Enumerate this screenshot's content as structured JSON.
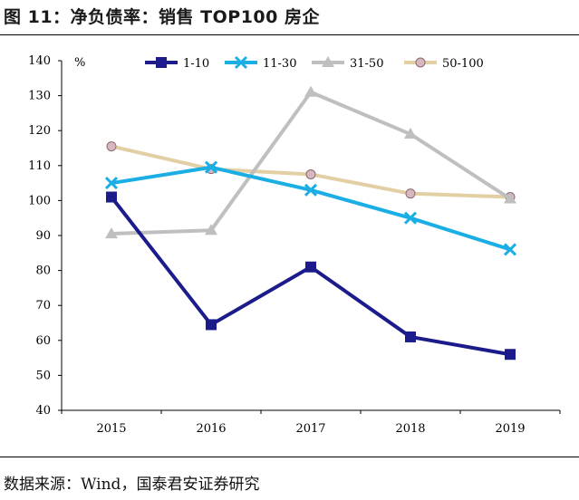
{
  "header": {
    "title": "图 11：净负债率：销售 TOP100 房企"
  },
  "footer": {
    "source": "数据来源：Wind，国泰君安证券研究"
  },
  "chart_data": {
    "type": "line",
    "ylabel": "%",
    "ylim": [
      40,
      140
    ],
    "yticks": [
      40,
      50,
      60,
      70,
      80,
      90,
      100,
      110,
      120,
      130,
      140
    ],
    "categories": [
      "2015",
      "2016",
      "2017",
      "2018",
      "2019"
    ],
    "grid": false,
    "legend_position": "top",
    "series": [
      {
        "name": "1-10",
        "values": [
          101,
          64.5,
          81,
          61,
          56
        ],
        "color": "#1b1b8c",
        "marker": "square"
      },
      {
        "name": "11-30",
        "values": [
          105,
          109.5,
          103,
          95,
          86
        ],
        "color": "#1aaee5",
        "marker": "x"
      },
      {
        "name": "31-50",
        "values": [
          90.5,
          91.5,
          131,
          119,
          100.5
        ],
        "color": "#bfbfbf",
        "marker": "triangle"
      },
      {
        "name": "50-100",
        "values": [
          115.5,
          109,
          107.5,
          102,
          101
        ],
        "color": "#e2cfa4",
        "marker": "circle"
      }
    ]
  }
}
